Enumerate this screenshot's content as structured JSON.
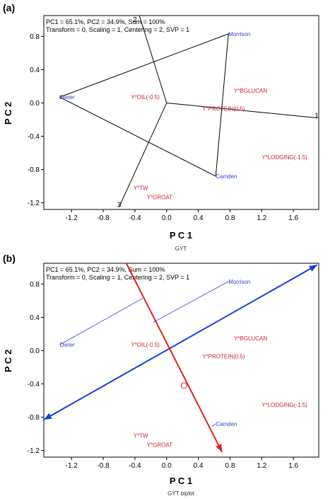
{
  "chart_data": [
    {
      "type": "scatter",
      "panel_label": "(a)",
      "info_line1": "PC1 = 65.1%, PC2 = 34.9%, Sum = 100%",
      "info_line2": "Transform = 0, Scaling = 1, Centering = 2, SVP = 1",
      "xlabel": "P C 1",
      "ylabel": "P C 2",
      "caption": "GYT",
      "xlim": [
        -1.55,
        1.92
      ],
      "ylim": [
        -1.28,
        1.05
      ],
      "x_ticks": [
        -1.2,
        -0.8,
        -0.4,
        0.0,
        0.4,
        0.8,
        1.2,
        1.6
      ],
      "x_tick_labels": [
        "-1.2",
        "-0.8",
        "-0.4",
        "0.0",
        "0.4",
        "0.8",
        "1.2",
        "1.6"
      ],
      "y_ticks": [
        0.8,
        0.4,
        0.0,
        -0.4,
        -0.8,
        -1.2
      ],
      "y_tick_labels": [
        "0.8",
        "0.4",
        "0.0",
        "-0.4",
        "-0.8",
        "-1.2"
      ],
      "genotypes": [
        {
          "label": "Morrison",
          "x": 0.78,
          "y": 0.83,
          "color": "#3344cc"
        },
        {
          "label": "Dieter",
          "x": -1.35,
          "y": 0.07,
          "color": "#3344cc"
        },
        {
          "label": "Camden",
          "x": 0.62,
          "y": -0.88,
          "color": "#3344cc"
        }
      ],
      "traits": [
        {
          "label": "Y*BGLUCAN",
          "x": 0.85,
          "y": 0.15,
          "color": "#cc2222"
        },
        {
          "label": "Y*OIL(-0.5)",
          "x": -0.45,
          "y": 0.07,
          "color": "#cc2222"
        },
        {
          "label": "Y*PROTEIN(0.5)",
          "x": 0.45,
          "y": -0.07,
          "color": "#cc2222"
        },
        {
          "label": "Y*LODGING(-1.5)",
          "x": 1.2,
          "y": -0.65,
          "color": "#cc2222"
        },
        {
          "label": "Y*TW",
          "x": -0.42,
          "y": -1.02,
          "color": "#cc2222"
        },
        {
          "label": "Y*GROAT",
          "x": -0.25,
          "y": -1.13,
          "color": "#cc2222"
        }
      ],
      "polygon": [
        {
          "x": 0.78,
          "y": 0.83
        },
        {
          "x": -1.35,
          "y": 0.07
        },
        {
          "x": 0.62,
          "y": -0.88
        }
      ],
      "sector_lines": [
        {
          "label": "2",
          "end": {
            "x": -0.4,
            "y": 1.22
          }
        },
        {
          "label": "1",
          "end": {
            "x": 1.9,
            "y": -0.18
          }
        },
        {
          "label": "3",
          "end": {
            "x": -0.6,
            "y": -1.25
          }
        }
      ]
    },
    {
      "type": "scatter",
      "panel_label": "(b)",
      "info_line1": "PC1 = 65.1%, PC2 = 34.9%, Sum = 100%",
      "info_line2": "Transform = 0, Scaling = 1, Centering = 2, SVP = 1",
      "xlabel": "P C 1",
      "ylabel": "P C 2",
      "caption": "GYT biplot",
      "xlim": [
        -1.55,
        1.92
      ],
      "ylim": [
        -1.28,
        1.05
      ],
      "x_ticks": [
        -1.2,
        -0.8,
        -0.4,
        0.0,
        0.4,
        0.8,
        1.2,
        1.6
      ],
      "x_tick_labels": [
        "-1.2",
        "-0.8",
        "-0.4",
        "0.0",
        "0.4",
        "0.8",
        "1.2",
        "1.6"
      ],
      "y_ticks": [
        0.8,
        0.4,
        0.0,
        -0.4,
        -0.8,
        -1.2
      ],
      "y_tick_labels": [
        "0.8",
        "0.4",
        "0.0",
        "-0.4",
        "-0.8",
        "-1.2"
      ],
      "genotypes": [
        {
          "label": "Morrison",
          "x": 0.78,
          "y": 0.83,
          "color": "#3344cc"
        },
        {
          "label": "Dieter",
          "x": -1.35,
          "y": 0.07,
          "color": "#3344cc"
        },
        {
          "label": "Camden",
          "x": 0.62,
          "y": -0.88,
          "color": "#3344cc"
        }
      ],
      "traits": [
        {
          "label": "Y*BGLUCAN",
          "x": 0.85,
          "y": 0.15,
          "color": "#cc2222"
        },
        {
          "label": "Y*OIL(-0.5)",
          "x": -0.45,
          "y": 0.07,
          "color": "#cc2222"
        },
        {
          "label": "Y*PROTEIN(0.5)",
          "x": 0.45,
          "y": -0.07,
          "color": "#cc2222"
        },
        {
          "label": "Y*LODGING(-1.5)",
          "x": 1.2,
          "y": -0.65,
          "color": "#cc2222"
        },
        {
          "label": "Y*TW",
          "x": -0.42,
          "y": -1.02,
          "color": "#cc2222"
        },
        {
          "label": "Y*GROAT",
          "x": -0.25,
          "y": -1.13,
          "color": "#cc2222"
        }
      ],
      "aec_abscissa": {
        "from": {
          "x": -1.55,
          "y": -0.83
        },
        "to": {
          "x": 1.9,
          "y": 1.03
        },
        "color": "#1a3fd6"
      },
      "aec_ordinate": {
        "from": {
          "x": -0.6,
          "y": 1.22
        },
        "to": {
          "x": 0.7,
          "y": -1.22
        },
        "color": "#e02020"
      },
      "aec_circle": {
        "x": 0.22,
        "y": -0.42
      },
      "projections": [
        {
          "from": {
            "x": -1.35,
            "y": 0.07
          },
          "to": {
            "x": -0.3,
            "y": 0.63
          }
        },
        {
          "from": {
            "x": 0.78,
            "y": 0.83
          },
          "to": {
            "x": -0.17,
            "y": 0.34
          }
        },
        {
          "from": {
            "x": 0.62,
            "y": -0.88
          },
          "to": {
            "x": 0.57,
            "y": -0.91
          }
        }
      ]
    }
  ]
}
